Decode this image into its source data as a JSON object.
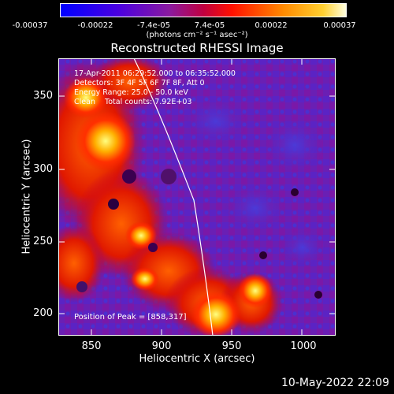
{
  "colorbar": {
    "ticks": [
      "-0.00037",
      "-0.00022",
      "-7.4e-05",
      "7.4e-05",
      "0.00022",
      "0.00037"
    ],
    "unit": "(photons cm⁻² s⁻¹ asec⁻²)"
  },
  "title": "Reconstructed RHESSI Image",
  "info_lines": [
    "17-Apr-2011 06:29:52.000 to 06:35:52.000",
    "Detectors: 3F 4F 5F 6F 7F 8F, Att 0",
    "Energy Range: 25.0 - 50.0 keV",
    "Clean    Total counts: 7.92E+03"
  ],
  "peak_text": "Position of Peak = [858,317]",
  "axes": {
    "xlabel": "Heliocentric X (arcsec)",
    "ylabel": "Heliocentric Y (arcsec)",
    "xticks": [
      "850",
      "900",
      "950",
      "1000"
    ],
    "yticks": [
      "350",
      "300",
      "250",
      "200"
    ]
  },
  "footer_date": "10-May-2022 22:09"
}
